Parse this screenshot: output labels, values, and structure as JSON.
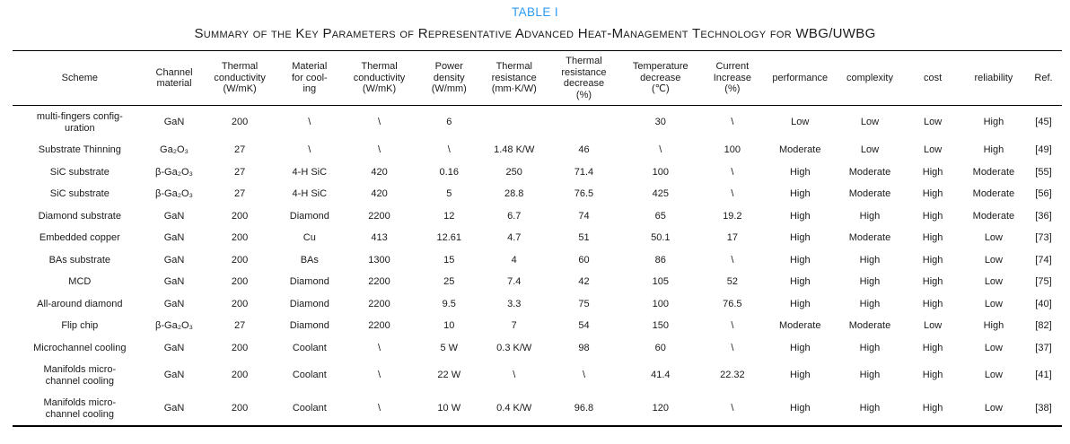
{
  "caption": {
    "label": "TABLE I",
    "title": "Summary of the Key Parameters of Representative Advanced Heat-Management Technology for WBG/UWBG"
  },
  "colors": {
    "caption_label_blue": "#2b9af3",
    "rule_color": "#000000",
    "text_color": "#1a1a1a",
    "background": "#ffffff"
  },
  "table": {
    "columns": [
      "Scheme",
      "Channel\nmaterial",
      "Thermal\nconductivity\n(W/mK)",
      "Material\nfor cool-\ning",
      "Thermal\nconductivity\n(W/mK)",
      "Power\ndensity\n(W/mm)",
      "Thermal\nresistance\n(mm·K/W)",
      "Thermal\nresistance\ndecrease\n(%)",
      "Temperature\ndecrease\n(℃)",
      "Current\nIncrease\n(%)",
      "performance",
      "complexity",
      "cost",
      "reliability",
      "Ref."
    ],
    "rows": [
      [
        "multi-fingers config-\nuration",
        "GaN",
        "200",
        "\\",
        "\\",
        "6",
        "",
        "",
        "30",
        "\\",
        "Low",
        "Low",
        "Low",
        "High",
        "[45]"
      ],
      [
        "Substrate Thinning",
        "Ga₂O₃",
        "27",
        "\\",
        "\\",
        "\\",
        "1.48 K/W",
        "46",
        "\\",
        "100",
        "Moderate",
        "Low",
        "Low",
        "High",
        "[49]"
      ],
      [
        "SiC substrate",
        "β-Ga₂O₃",
        "27",
        "4-H SiC",
        "420",
        "0.16",
        "250",
        "71.4",
        "100",
        "\\",
        "High",
        "Moderate",
        "High",
        "Moderate",
        "[55]"
      ],
      [
        "SiC substrate",
        "β-Ga₂O₃",
        "27",
        "4-H SiC",
        "420",
        "5",
        "28.8",
        "76.5",
        "425",
        "\\",
        "High",
        "Moderate",
        "High",
        "Moderate",
        "[56]"
      ],
      [
        "Diamond substrate",
        "GaN",
        "200",
        "Diamond",
        "2200",
        "12",
        "6.7",
        "74",
        "65",
        "19.2",
        "High",
        "High",
        "High",
        "Moderate",
        "[36]"
      ],
      [
        "Embedded copper",
        "GaN",
        "200",
        "Cu",
        "413",
        "12.61",
        "4.7",
        "51",
        "50.1",
        "17",
        "High",
        "Moderate",
        "High",
        "Low",
        "[73]"
      ],
      [
        "BAs substrate",
        "GaN",
        "200",
        "BAs",
        "1300",
        "15",
        "4",
        "60",
        "86",
        "\\",
        "High",
        "High",
        "High",
        "Low",
        "[74]"
      ],
      [
        "MCD",
        "GaN",
        "200",
        "Diamond",
        "2200",
        "25",
        "7.4",
        "42",
        "105",
        "52",
        "High",
        "High",
        "High",
        "Low",
        "[75]"
      ],
      [
        "All-around diamond",
        "GaN",
        "200",
        "Diamond",
        "2200",
        "9.5",
        "3.3",
        "75",
        "100",
        "76.5",
        "High",
        "High",
        "High",
        "Low",
        "[40]"
      ],
      [
        "Flip chip",
        "β-Ga₂O₃",
        "27",
        "Diamond",
        "2200",
        "10",
        "7",
        "54",
        "150",
        "\\",
        "Moderate",
        "Moderate",
        "Low",
        "High",
        "[82]"
      ],
      [
        "Microchannel cooling",
        "GaN",
        "200",
        "Coolant",
        "\\",
        "5 W",
        "0.3 K/W",
        "98",
        "60",
        "\\",
        "High",
        "High",
        "High",
        "Low",
        "[37]"
      ],
      [
        "Manifolds micro-\nchannel cooling",
        "GaN",
        "200",
        "Coolant",
        "\\",
        "22 W",
        "\\",
        "\\",
        "41.4",
        "22.32",
        "High",
        "High",
        "High",
        "Low",
        "[41]"
      ],
      [
        "Manifolds micro-\nchannel cooling",
        "GaN",
        "200",
        "Coolant",
        "\\",
        "10 W",
        "0.4 K/W",
        "96.8",
        "120",
        "\\",
        "High",
        "High",
        "High",
        "Low",
        "[38]"
      ]
    ]
  }
}
